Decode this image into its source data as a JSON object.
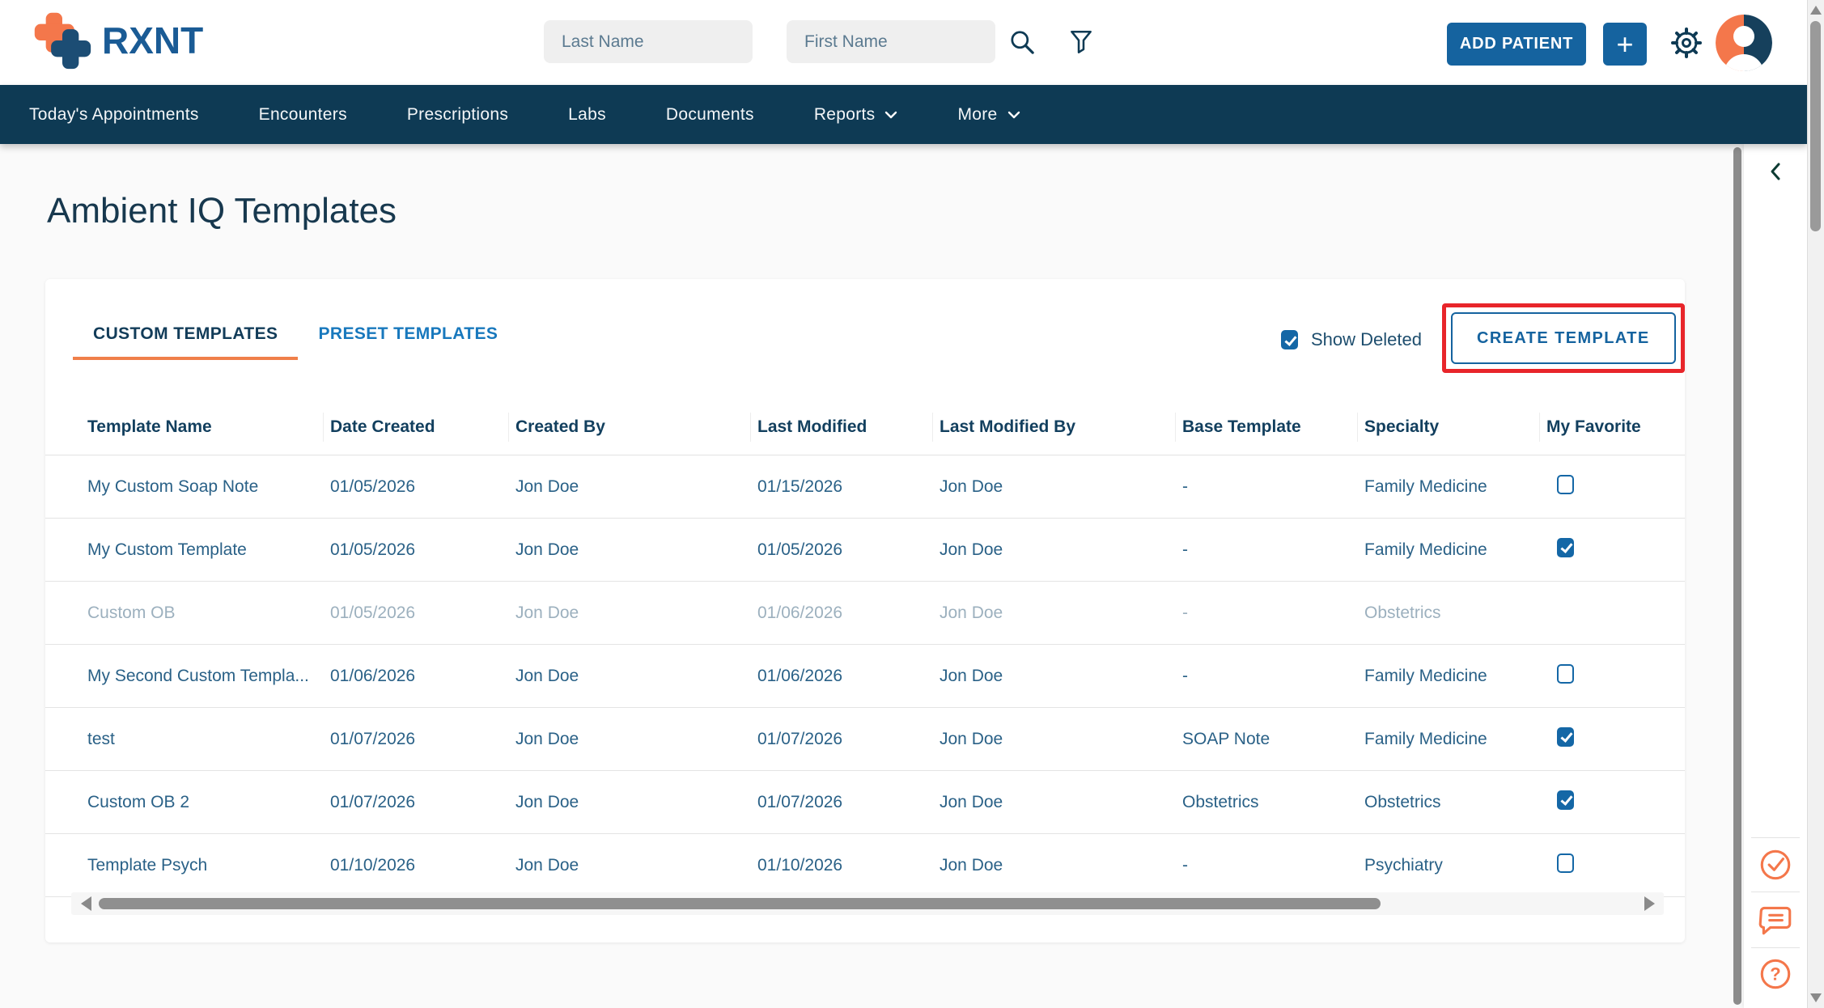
{
  "header": {
    "logo_text": "RXNT",
    "last_name_placeholder": "Last Name",
    "first_name_placeholder": "First Name",
    "add_patient_label": "ADD PATIENT",
    "plus_label": "+"
  },
  "nav": {
    "items": [
      {
        "id": "todays-appointments",
        "label": "Today's Appointments",
        "has_dropdown": false
      },
      {
        "id": "encounters",
        "label": "Encounters",
        "has_dropdown": false
      },
      {
        "id": "prescriptions",
        "label": "Prescriptions",
        "has_dropdown": false
      },
      {
        "id": "labs",
        "label": "Labs",
        "has_dropdown": false
      },
      {
        "id": "documents",
        "label": "Documents",
        "has_dropdown": false
      },
      {
        "id": "reports",
        "label": "Reports",
        "has_dropdown": true
      },
      {
        "id": "more",
        "label": "More",
        "has_dropdown": true
      }
    ]
  },
  "page": {
    "title": "Ambient IQ Templates"
  },
  "tabs": [
    {
      "id": "custom-templates",
      "label": "CUSTOM TEMPLATES",
      "active": true
    },
    {
      "id": "preset-templates",
      "label": "PRESET TEMPLATES",
      "active": false
    }
  ],
  "controls": {
    "show_deleted_label": "Show Deleted",
    "show_deleted_checked": true,
    "create_template_label": "CREATE TEMPLATE"
  },
  "table": {
    "columns": [
      "Template Name",
      "Date Created",
      "Created By",
      "Last Modified",
      "Last Modified By",
      "Base Template",
      "Specialty",
      "My Favorite"
    ],
    "rows": [
      {
        "template_name": "My Custom Soap Note",
        "date_created": "01/05/2026",
        "created_by": "Jon Doe",
        "last_modified": "01/15/2026",
        "last_modified_by": "Jon Doe",
        "base_template": "-",
        "specialty": "Family Medicine",
        "favorite": "unchecked",
        "deleted": false
      },
      {
        "template_name": "My Custom Template",
        "date_created": "01/05/2026",
        "created_by": "Jon Doe",
        "last_modified": "01/05/2026",
        "last_modified_by": "Jon Doe",
        "base_template": "-",
        "specialty": "Family Medicine",
        "favorite": "checked",
        "deleted": false
      },
      {
        "template_name": "Custom OB",
        "date_created": "01/05/2026",
        "created_by": "Jon Doe",
        "last_modified": "01/06/2026",
        "last_modified_by": "Jon Doe",
        "base_template": "-",
        "specialty": "Obstetrics",
        "favorite": "none",
        "deleted": true
      },
      {
        "template_name": "My Second Custom Templa...",
        "date_created": "01/06/2026",
        "created_by": "Jon Doe",
        "last_modified": "01/06/2026",
        "last_modified_by": "Jon Doe",
        "base_template": "-",
        "specialty": "Family Medicine",
        "favorite": "unchecked",
        "deleted": false
      },
      {
        "template_name": "test",
        "date_created": "01/07/2026",
        "created_by": "Jon Doe",
        "last_modified": "01/07/2026",
        "last_modified_by": "Jon Doe",
        "base_template": "SOAP Note",
        "specialty": "Family Medicine",
        "favorite": "checked",
        "deleted": false
      },
      {
        "template_name": "Custom OB 2",
        "date_created": "01/07/2026",
        "created_by": "Jon Doe",
        "last_modified": "01/07/2026",
        "last_modified_by": "Jon Doe",
        "base_template": "Obstetrics",
        "specialty": "Obstetrics",
        "favorite": "checked",
        "deleted": false
      },
      {
        "template_name": "Template Psych",
        "date_created": "01/10/2026",
        "created_by": "Jon Doe",
        "last_modified": "01/10/2026",
        "last_modified_by": "Jon Doe",
        "base_template": "-",
        "specialty": "Psychiatry",
        "favorite": "unchecked",
        "deleted": false
      }
    ]
  },
  "utility_panel_icons": [
    "check-circle",
    "chat",
    "help"
  ],
  "colors": {
    "nav_navy": "#0e3a54",
    "brand_blue": "#15639f",
    "accent_orange": "#f4774b",
    "tab_underline": "#f07f4a",
    "highlight_red": "#e8252a",
    "inactive_tab_blue": "#1878bd",
    "cell_text": "#2a6187",
    "deleted_text": "#9cb0be"
  }
}
